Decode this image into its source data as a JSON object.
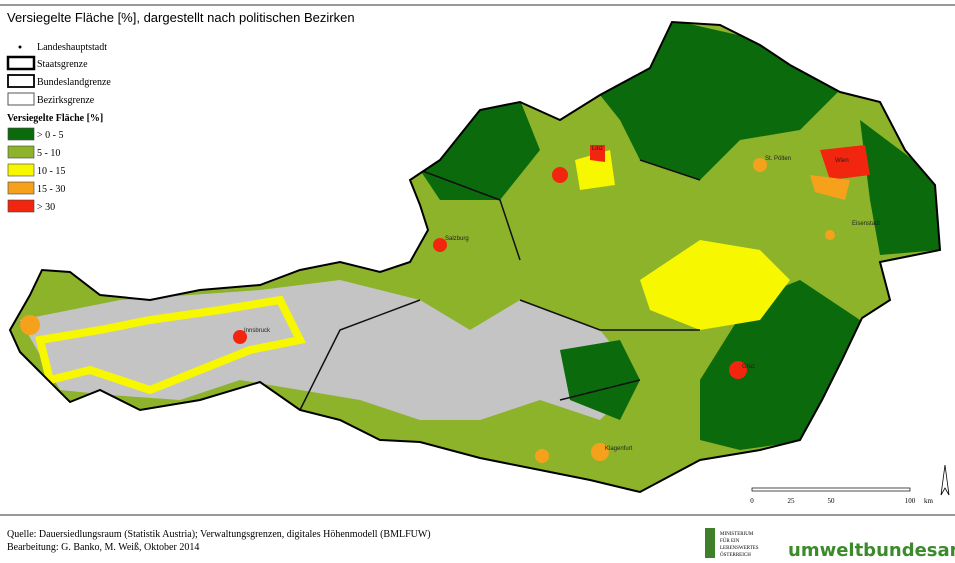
{
  "header": {
    "title": "Versiegelte Fläche [%], dargestellt nach politischen Bezirken"
  },
  "legend": {
    "symbols": [
      "Landeshauptstadt",
      "Staatsgrenze",
      "Bundeslandgrenze",
      "Bezirksgrenze"
    ],
    "title": "Versiegelte Fläche [%]",
    "classes": [
      {
        "label": "> 0 - 5",
        "color": "#0b6a0b"
      },
      {
        "label": "5 - 10",
        "color": "#8db32a"
      },
      {
        "label": "10 - 15",
        "color": "#f7f700"
      },
      {
        "label": "15 - 30",
        "color": "#f6a11c"
      },
      {
        "label": "> 30",
        "color": "#f2260f"
      }
    ]
  },
  "cities": [
    "Wien",
    "Salzburg",
    "Innsbruck",
    "Eisenstadt",
    "Linz",
    "St. Pölten",
    "Graz",
    "Klagenfurt"
  ],
  "scale_bar": {
    "labels": [
      "0",
      "25",
      "50",
      "100",
      "km"
    ]
  },
  "footer": {
    "source": "Quelle: Dauersiedlungsraum (Statistik Austria); Verwaltungsgrenzen, digitales Höhenmodell (BMLFUW)",
    "credit": "Bearbeitung: G. Banko, M. Weiß, Oktober 2014",
    "ministry": [
      "MINISTERIUM",
      "FÜR EIN",
      "LEBENSWERTES",
      "ÖSTERREICH"
    ],
    "agency": "umweltbundesamt"
  }
}
